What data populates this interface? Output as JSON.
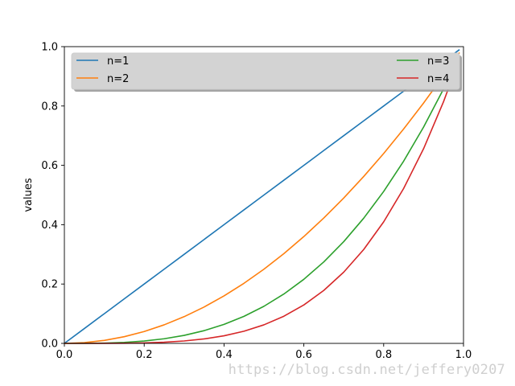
{
  "chart_data": {
    "type": "line",
    "title": "",
    "xlabel": "",
    "ylabel": "values",
    "xlim": [
      0,
      1
    ],
    "ylim": [
      0,
      1
    ],
    "x_ticks": [
      "0.0",
      "0.2",
      "0.4",
      "0.6",
      "0.8",
      "1.0"
    ],
    "y_ticks": [
      "0.0",
      "0.2",
      "0.4",
      "0.6",
      "0.8",
      "1.0"
    ],
    "grid": false,
    "legend_position": "top (expanded across plot width, 2 columns)",
    "x": [
      0.0,
      0.05,
      0.1,
      0.15,
      0.2,
      0.25,
      0.3,
      0.35,
      0.4,
      0.45,
      0.5,
      0.55,
      0.6,
      0.65,
      0.7,
      0.75,
      0.8,
      0.85,
      0.9,
      0.95,
      0.99
    ],
    "series": [
      {
        "name": "n=1",
        "color": "#1f77b4",
        "values": [
          0.0,
          0.05,
          0.1,
          0.15,
          0.2,
          0.25,
          0.3,
          0.35,
          0.4,
          0.45,
          0.5,
          0.55,
          0.6,
          0.65,
          0.7,
          0.75,
          0.8,
          0.85,
          0.9,
          0.95,
          0.99
        ]
      },
      {
        "name": "n=2",
        "color": "#ff7f0e",
        "values": [
          0.0,
          0.0025,
          0.01,
          0.0225,
          0.04,
          0.0625,
          0.09,
          0.1225,
          0.16,
          0.2025,
          0.25,
          0.3025,
          0.36,
          0.4225,
          0.49,
          0.5625,
          0.64,
          0.7225,
          0.81,
          0.9025,
          0.98
        ]
      },
      {
        "name": "n=3",
        "color": "#2ca02c",
        "values": [
          0.0,
          0.0001,
          0.001,
          0.0034,
          0.008,
          0.0156,
          0.027,
          0.0429,
          0.064,
          0.0911,
          0.125,
          0.1664,
          0.216,
          0.2746,
          0.343,
          0.4219,
          0.512,
          0.6141,
          0.729,
          0.8574,
          0.97
        ]
      },
      {
        "name": "n=4",
        "color": "#d62728",
        "values": [
          0.0,
          0.0,
          0.0001,
          0.0005,
          0.0016,
          0.0039,
          0.0081,
          0.015,
          0.0256,
          0.041,
          0.0625,
          0.0915,
          0.1296,
          0.1785,
          0.2401,
          0.3164,
          0.4096,
          0.522,
          0.6561,
          0.8145,
          0.96
        ]
      }
    ]
  },
  "watermark": "https://blog.csdn.net/jeffery0207"
}
